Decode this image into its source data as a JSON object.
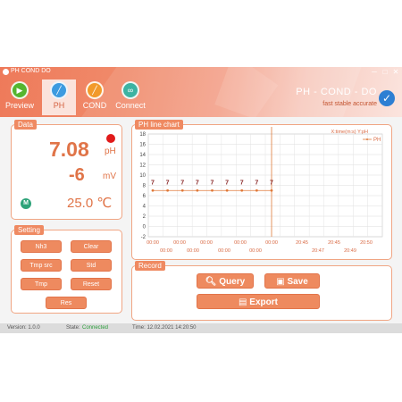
{
  "window": {
    "title": "PH COND DO",
    "minimize": "─",
    "maximize": "□",
    "close": "✕"
  },
  "nav": [
    {
      "label": "Preview",
      "icon": "play-icon"
    },
    {
      "label": "PH",
      "icon": "ph-probe-icon"
    },
    {
      "label": "COND",
      "icon": "cond-probe-icon"
    },
    {
      "label": "Connect",
      "icon": "link-icon"
    }
  ],
  "brand": {
    "title": "PH - COND - DO",
    "tagline": "fast stable accurate"
  },
  "data": {
    "title": "Data",
    "ph_value": "7.08",
    "ph_unit": "pH",
    "mv_value": "-6",
    "mv_unit": "mV",
    "temp_value": "25.0 ℃",
    "mode_icon": "M"
  },
  "setting": {
    "title": "Setting",
    "buttons": [
      "Nh3",
      "Clear",
      "Tmp src",
      "Std",
      "Tmp",
      "Reset",
      "Res"
    ]
  },
  "chart": {
    "title": "PH line chart",
    "axis_caption": "X:time(m:s)  Y:pH",
    "legend": "PH"
  },
  "chart_data": {
    "type": "line",
    "title": "PH line chart",
    "xlabel": "X:time(m:s)",
    "ylabel": "Y:pH",
    "ylim": [
      -2,
      18
    ],
    "yticks": [
      -2,
      0,
      2,
      4,
      6,
      8,
      10,
      12,
      14,
      16,
      18
    ],
    "xticks_top": [
      "00:00",
      "00:00",
      "00:00",
      "00:00",
      "00:00",
      "20:45",
      "20:45",
      "20:50"
    ],
    "xticks_bottom": [
      "00:00",
      "00:00",
      "00:00",
      "00:00",
      "20:47",
      "20:49"
    ],
    "grid": true,
    "legend_position": "top-right",
    "series": [
      {
        "name": "PH",
        "values": [
          7,
          7,
          7,
          7,
          7,
          7,
          7,
          7,
          7
        ],
        "labels": [
          "7",
          "7",
          "7",
          "7",
          "7",
          "7",
          "7",
          "7",
          "7"
        ]
      }
    ],
    "color": "#e07a3a"
  },
  "record": {
    "title": "Record",
    "query": "Query",
    "save": "Save",
    "export": "Export"
  },
  "status": {
    "version": "Version: 1.0.0",
    "state_label": "State:",
    "state_value": "Connected",
    "time": "Time: 12.02.2021  14:20:50"
  }
}
